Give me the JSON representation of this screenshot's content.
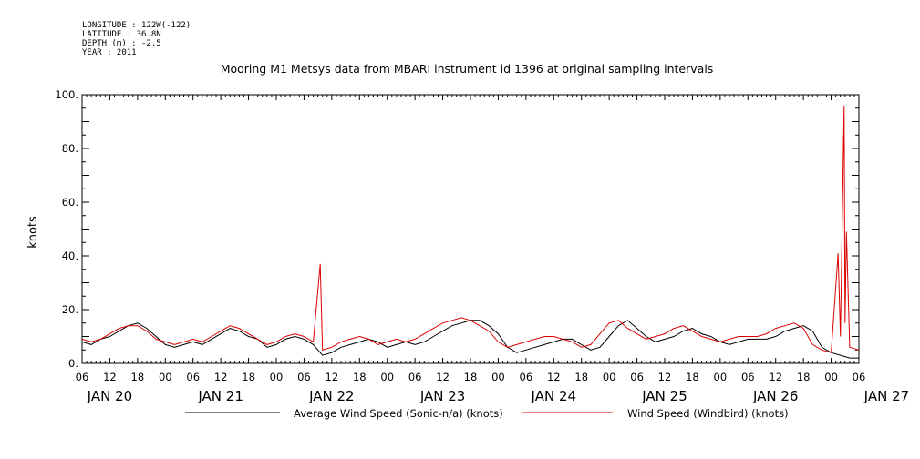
{
  "header": {
    "longitude": "LONGITUDE : 122W(-122)",
    "latitude": "LATITUDE : 36.8N",
    "depth": "DEPTH (m) : -2.5",
    "year": "YEAR : 2011"
  },
  "chart_data": {
    "type": "line",
    "title": "Mooring M1 Metsys data from MBARI instrument id 1396 at original sampling intervals",
    "ylabel": "knots",
    "ylim": [
      0,
      100
    ],
    "y_tick_labels": [
      "0.",
      "20.",
      "40.",
      "60.",
      "80.",
      "100."
    ],
    "xlim_hours": [
      6,
      174
    ],
    "x_hour_labels": [
      "06",
      "12",
      "18",
      "00",
      "06",
      "12",
      "18",
      "00",
      "06",
      "12",
      "18",
      "00",
      "06",
      "12",
      "18",
      "00",
      "06",
      "12",
      "18",
      "00",
      "06",
      "12",
      "18",
      "00",
      "06",
      "12",
      "18",
      "00",
      "06"
    ],
    "date_labels": [
      "JAN 20",
      "JAN 21",
      "JAN 22",
      "JAN 23",
      "JAN 24",
      "JAN 25",
      "JAN 26",
      "JAN 27"
    ],
    "grid": false,
    "legend_placement": "bottom",
    "x_unit": "hours from 2011-01-20 00:00",
    "series": [
      {
        "name": "Average Wind Speed (Sonic-n/a) (knots)",
        "color": "#000000",
        "x": [
          6,
          8,
          10,
          12,
          14,
          16,
          18,
          20,
          22,
          24,
          26,
          28,
          30,
          32,
          34,
          36,
          38,
          40,
          42,
          44,
          46,
          48,
          50,
          52,
          54,
          56,
          58,
          60,
          62,
          64,
          66,
          68,
          70,
          72,
          74,
          76,
          78,
          80,
          82,
          84,
          86,
          88,
          90,
          92,
          94,
          96,
          98,
          100,
          102,
          104,
          106,
          108,
          110,
          112,
          114,
          116,
          118,
          120,
          122,
          124,
          126,
          128,
          130,
          132,
          134,
          136,
          138,
          140,
          142,
          144,
          146,
          148,
          150,
          152,
          154,
          156,
          158,
          160,
          162,
          164,
          166,
          168,
          170,
          172,
          174
        ],
        "values": [
          8,
          7,
          9,
          10,
          12,
          14,
          15,
          13,
          10,
          7,
          6,
          7,
          8,
          7,
          9,
          11,
          13,
          12,
          10,
          9,
          6,
          7,
          9,
          10,
          9,
          7,
          3,
          4,
          6,
          7,
          8,
          9,
          8,
          6,
          7,
          8,
          7,
          8,
          10,
          12,
          14,
          15,
          16,
          16,
          14,
          11,
          6,
          4,
          5,
          6,
          7,
          8,
          9,
          9,
          7,
          5,
          6,
          10,
          14,
          16,
          13,
          10,
          8,
          9,
          10,
          12,
          13,
          11,
          10,
          8,
          7,
          8,
          9,
          9,
          9,
          10,
          12,
          13,
          14,
          12,
          6,
          4,
          3,
          2,
          2
        ]
      },
      {
        "name": "Wind Speed (Windbird) (knots)",
        "color": "#dd0000",
        "x": [
          6,
          8,
          10,
          12,
          14,
          16,
          18,
          20,
          22,
          24,
          26,
          28,
          30,
          32,
          34,
          36,
          38,
          40,
          42,
          44,
          46,
          48,
          50,
          52,
          54,
          56,
          57.5,
          58,
          60,
          62,
          64,
          66,
          68,
          70,
          72,
          74,
          76,
          78,
          80,
          82,
          84,
          86,
          88,
          90,
          92,
          94,
          96,
          98,
          100,
          102,
          104,
          106,
          108,
          110,
          112,
          114,
          116,
          118,
          120,
          122,
          124,
          126,
          128,
          130,
          132,
          134,
          136,
          138,
          140,
          142,
          144,
          146,
          148,
          150,
          152,
          154,
          156,
          158,
          160,
          162,
          164,
          166,
          168,
          169.5,
          170,
          170.8,
          171,
          171.3,
          172,
          174
        ],
        "values": [
          9,
          8,
          9,
          11,
          13,
          14,
          14,
          12,
          9,
          8,
          7,
          8,
          9,
          8,
          10,
          12,
          14,
          13,
          11,
          9,
          7,
          8,
          10,
          11,
          10,
          8,
          37,
          5,
          6,
          8,
          9,
          10,
          9,
          7,
          8,
          9,
          8,
          9,
          11,
          13,
          15,
          16,
          17,
          16,
          14,
          12,
          8,
          6,
          7,
          8,
          9,
          10,
          10,
          9,
          8,
          6,
          7,
          11,
          15,
          16,
          13,
          11,
          9,
          10,
          11,
          13,
          14,
          12,
          10,
          9,
          8,
          9,
          10,
          10,
          10,
          11,
          13,
          14,
          15,
          13,
          7,
          5,
          4,
          41,
          10,
          96,
          15,
          49,
          6,
          5
        ]
      }
    ]
  }
}
